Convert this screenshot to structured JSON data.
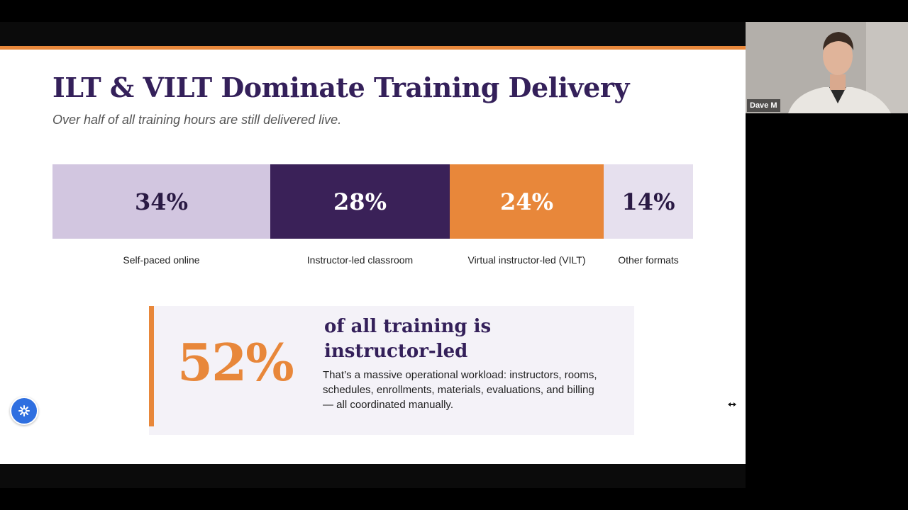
{
  "slide": {
    "title": "ILT & VILT Dominate Training Delivery",
    "subtitle": "Over half of all training hours are still delivered live.",
    "colors": {
      "purple": "#34205a",
      "lavender": "#d2c6e0",
      "orange": "#e8873a",
      "pale": "#e6e0ee"
    }
  },
  "chart_data": {
    "type": "bar",
    "categories": [
      "Self-paced online",
      "Instructor-led classroom",
      "Virtual instructor-led (VILT)",
      "Other formats"
    ],
    "values": [
      34,
      28,
      24,
      14
    ],
    "value_labels": [
      "34%",
      "28%",
      "24%",
      "14%"
    ],
    "colors": [
      "#d2c6e0",
      "#3a2158",
      "#e8873a",
      "#e6e0ee"
    ]
  },
  "callout": {
    "big_value": "52%",
    "heading": "of all training is instructor-led",
    "body": "That’s a massive operational workload: instructors, rooms, schedules, enrollments, materials, evaluations, and billing — all coordinated manually."
  },
  "video": {
    "participant_name": "Dave M"
  },
  "icons": {
    "help": "asterisk-icon",
    "cursor": "resize-cursor-icon"
  }
}
